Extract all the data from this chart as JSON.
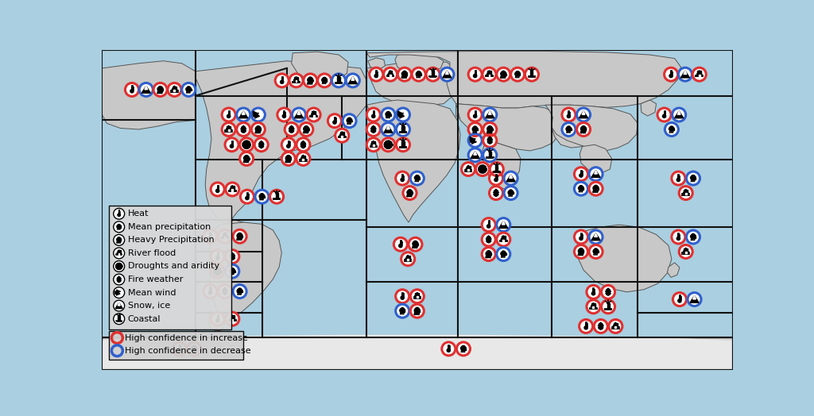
{
  "background_color": "#aacfe0",
  "land_color": "#c8c8c8",
  "land_edge": "#555555",
  "region_edge": "#111111",
  "red": "#e03030",
  "blue": "#3060cc",
  "legend_items": [
    "Heat",
    "Mean precipitation",
    "Heavy Precipitation",
    "River flood",
    "Droughts and aridity",
    "Fire weather",
    "Mean wind",
    "Snow, ice",
    "Coastal"
  ],
  "icon_types": [
    "heat",
    "mean_precip",
    "heavy_precip",
    "river_flood",
    "drought",
    "fire",
    "wind",
    "snow_ice",
    "coastal"
  ]
}
